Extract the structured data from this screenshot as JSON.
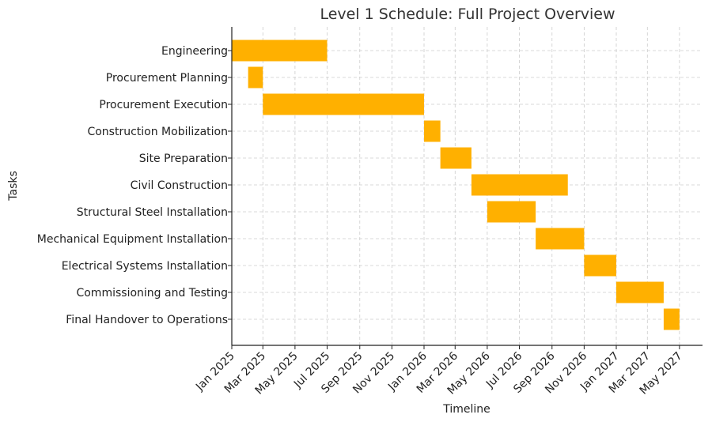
{
  "chart_data": {
    "type": "gantt",
    "title": "Level 1 Schedule: Full Project Overview",
    "xlabel": "Timeline",
    "ylabel": "Tasks",
    "bar_color": "#FFB000",
    "grid": true,
    "xlim": [
      "2025-01-01",
      "2027-05-31"
    ],
    "x_ticks": [
      {
        "date": "2025-01-01",
        "label": "Jan 2025"
      },
      {
        "date": "2025-03-01",
        "label": "Mar 2025"
      },
      {
        "date": "2025-05-01",
        "label": "May 2025"
      },
      {
        "date": "2025-07-01",
        "label": "Jul 2025"
      },
      {
        "date": "2025-09-01",
        "label": "Sep 2025"
      },
      {
        "date": "2025-11-01",
        "label": "Nov 2025"
      },
      {
        "date": "2026-01-01",
        "label": "Jan 2026"
      },
      {
        "date": "2026-03-01",
        "label": "Mar 2026"
      },
      {
        "date": "2026-05-01",
        "label": "May 2026"
      },
      {
        "date": "2026-07-01",
        "label": "Jul 2026"
      },
      {
        "date": "2026-09-01",
        "label": "Sep 2026"
      },
      {
        "date": "2026-11-01",
        "label": "Nov 2026"
      },
      {
        "date": "2027-01-01",
        "label": "Jan 2027"
      },
      {
        "date": "2027-03-01",
        "label": "Mar 2027"
      },
      {
        "date": "2027-05-01",
        "label": "May 2027"
      }
    ],
    "tasks": [
      {
        "name": "Engineering",
        "start": "2025-01-01",
        "end": "2025-07-01"
      },
      {
        "name": "Procurement Planning",
        "start": "2025-02-01",
        "end": "2025-03-01"
      },
      {
        "name": "Procurement Execution",
        "start": "2025-03-01",
        "end": "2026-01-01"
      },
      {
        "name": "Construction Mobilization",
        "start": "2026-01-01",
        "end": "2026-02-01"
      },
      {
        "name": "Site Preparation",
        "start": "2026-02-01",
        "end": "2026-04-01"
      },
      {
        "name": "Civil Construction",
        "start": "2026-04-01",
        "end": "2026-10-01"
      },
      {
        "name": "Structural Steel Installation",
        "start": "2026-05-01",
        "end": "2026-08-01"
      },
      {
        "name": "Mechanical Equipment Installation",
        "start": "2026-08-01",
        "end": "2026-11-01"
      },
      {
        "name": "Electrical Systems Installation",
        "start": "2026-11-01",
        "end": "2027-01-01"
      },
      {
        "name": "Commissioning and Testing",
        "start": "2027-01-01",
        "end": "2027-04-01"
      },
      {
        "name": "Final Handover to Operations",
        "start": "2027-04-01",
        "end": "2027-05-01"
      }
    ]
  }
}
